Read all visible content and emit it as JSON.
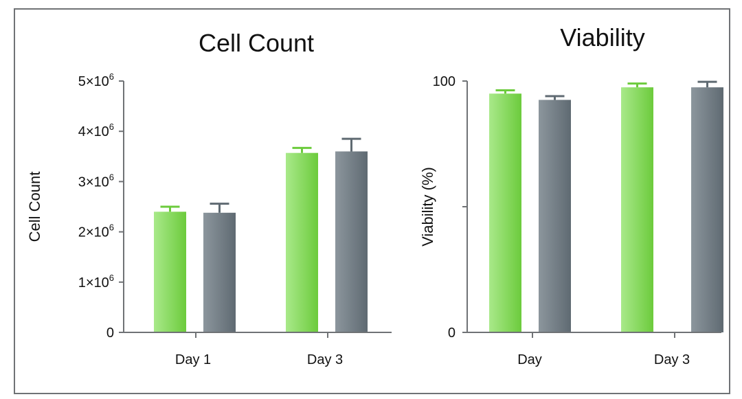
{
  "colors": {
    "green_light": "#a9e98a",
    "green_dark": "#6ccb3c",
    "gray_light": "#8c969d",
    "gray_dark": "#5f6a72",
    "axis": "#6f7275",
    "frame": "#6f7275"
  },
  "chart_data": [
    {
      "type": "bar",
      "title": "Cell Count",
      "xlabel": "",
      "ylabel": "Cell Count",
      "categories": [
        "Day  1",
        "Day  3"
      ],
      "ylim": [
        0,
        5000000
      ],
      "yticks": [
        {
          "value": 0,
          "mantissa": "0",
          "exp": ""
        },
        {
          "value": 1000000,
          "mantissa": "1×10",
          "exp": "6"
        },
        {
          "value": 2000000,
          "mantissa": "2×10",
          "exp": "6"
        },
        {
          "value": 3000000,
          "mantissa": "3×10",
          "exp": "6"
        },
        {
          "value": 4000000,
          "mantissa": "4×10",
          "exp": "6"
        },
        {
          "value": 5000000,
          "mantissa": "5×10",
          "exp": "6"
        }
      ],
      "series": [
        {
          "color_key": "green",
          "values": [
            2400000,
            3570000
          ],
          "errors": [
            100000,
            100000
          ]
        },
        {
          "color_key": "gray",
          "values": [
            2380000,
            3600000
          ],
          "errors": [
            180000,
            250000
          ]
        }
      ],
      "grid": false,
      "legend": "none"
    },
    {
      "type": "bar",
      "title": "Viability",
      "xlabel": "",
      "ylabel": "Viability  (%)",
      "categories": [
        "Day",
        "Day  3"
      ],
      "ylim": [
        0,
        100
      ],
      "yticks": [
        {
          "value": 0,
          "mantissa": "0",
          "exp": ""
        },
        {
          "value": 50,
          "mantissa": "",
          "exp": ""
        },
        {
          "value": 100,
          "mantissa": "100",
          "exp": ""
        }
      ],
      "series": [
        {
          "color_key": "green",
          "values": [
            95,
            97.5
          ],
          "errors": [
            1.3,
            1.5
          ]
        },
        {
          "color_key": "gray",
          "values": [
            92.5,
            97.5
          ],
          "errors": [
            1.5,
            2.2
          ]
        }
      ],
      "grid": false,
      "legend": "none"
    }
  ]
}
